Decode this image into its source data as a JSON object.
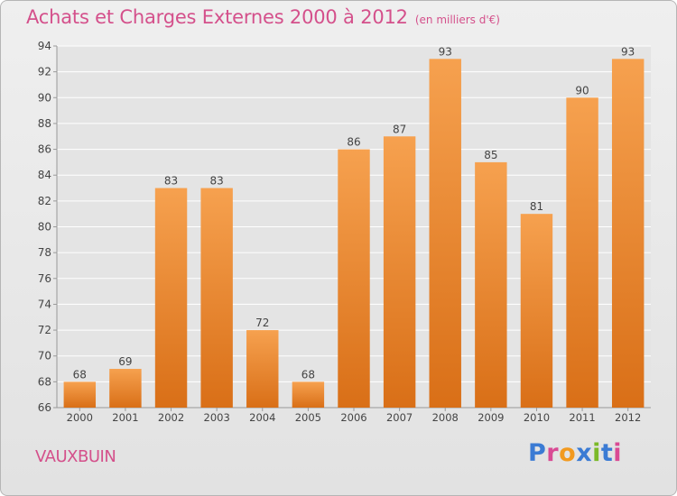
{
  "header": {
    "title": "Achats et Charges Externes 2000 à 2012",
    "unit": "(en milliers d'€)"
  },
  "footer": {
    "commune": "VAUXBUIN",
    "brand": "Proxiti",
    "brand_colors": [
      "#3b7bd4",
      "#d94a94",
      "#f29a1f",
      "#3b7bd4",
      "#7bb928",
      "#3b7bd4",
      "#d94a94"
    ]
  },
  "colors": {
    "bar_top": "#f6a14f",
    "bar_bottom": "#d96f17",
    "title": "#d4508b",
    "grid": "#ffffff",
    "axis_text": "#444444"
  },
  "chart_data": {
    "type": "bar",
    "title": "Achats et Charges Externes 2000 à 2012",
    "xlabel": "",
    "ylabel": "",
    "categories": [
      "2000",
      "2001",
      "2002",
      "2003",
      "2004",
      "2005",
      "2006",
      "2007",
      "2008",
      "2009",
      "2010",
      "2011",
      "2012"
    ],
    "values": [
      68,
      69,
      83,
      83,
      72,
      68,
      86,
      87,
      93,
      85,
      81,
      90,
      93
    ],
    "ylim": [
      66,
      94
    ],
    "ytick_step": 2,
    "grid": true,
    "data_labels": true
  }
}
